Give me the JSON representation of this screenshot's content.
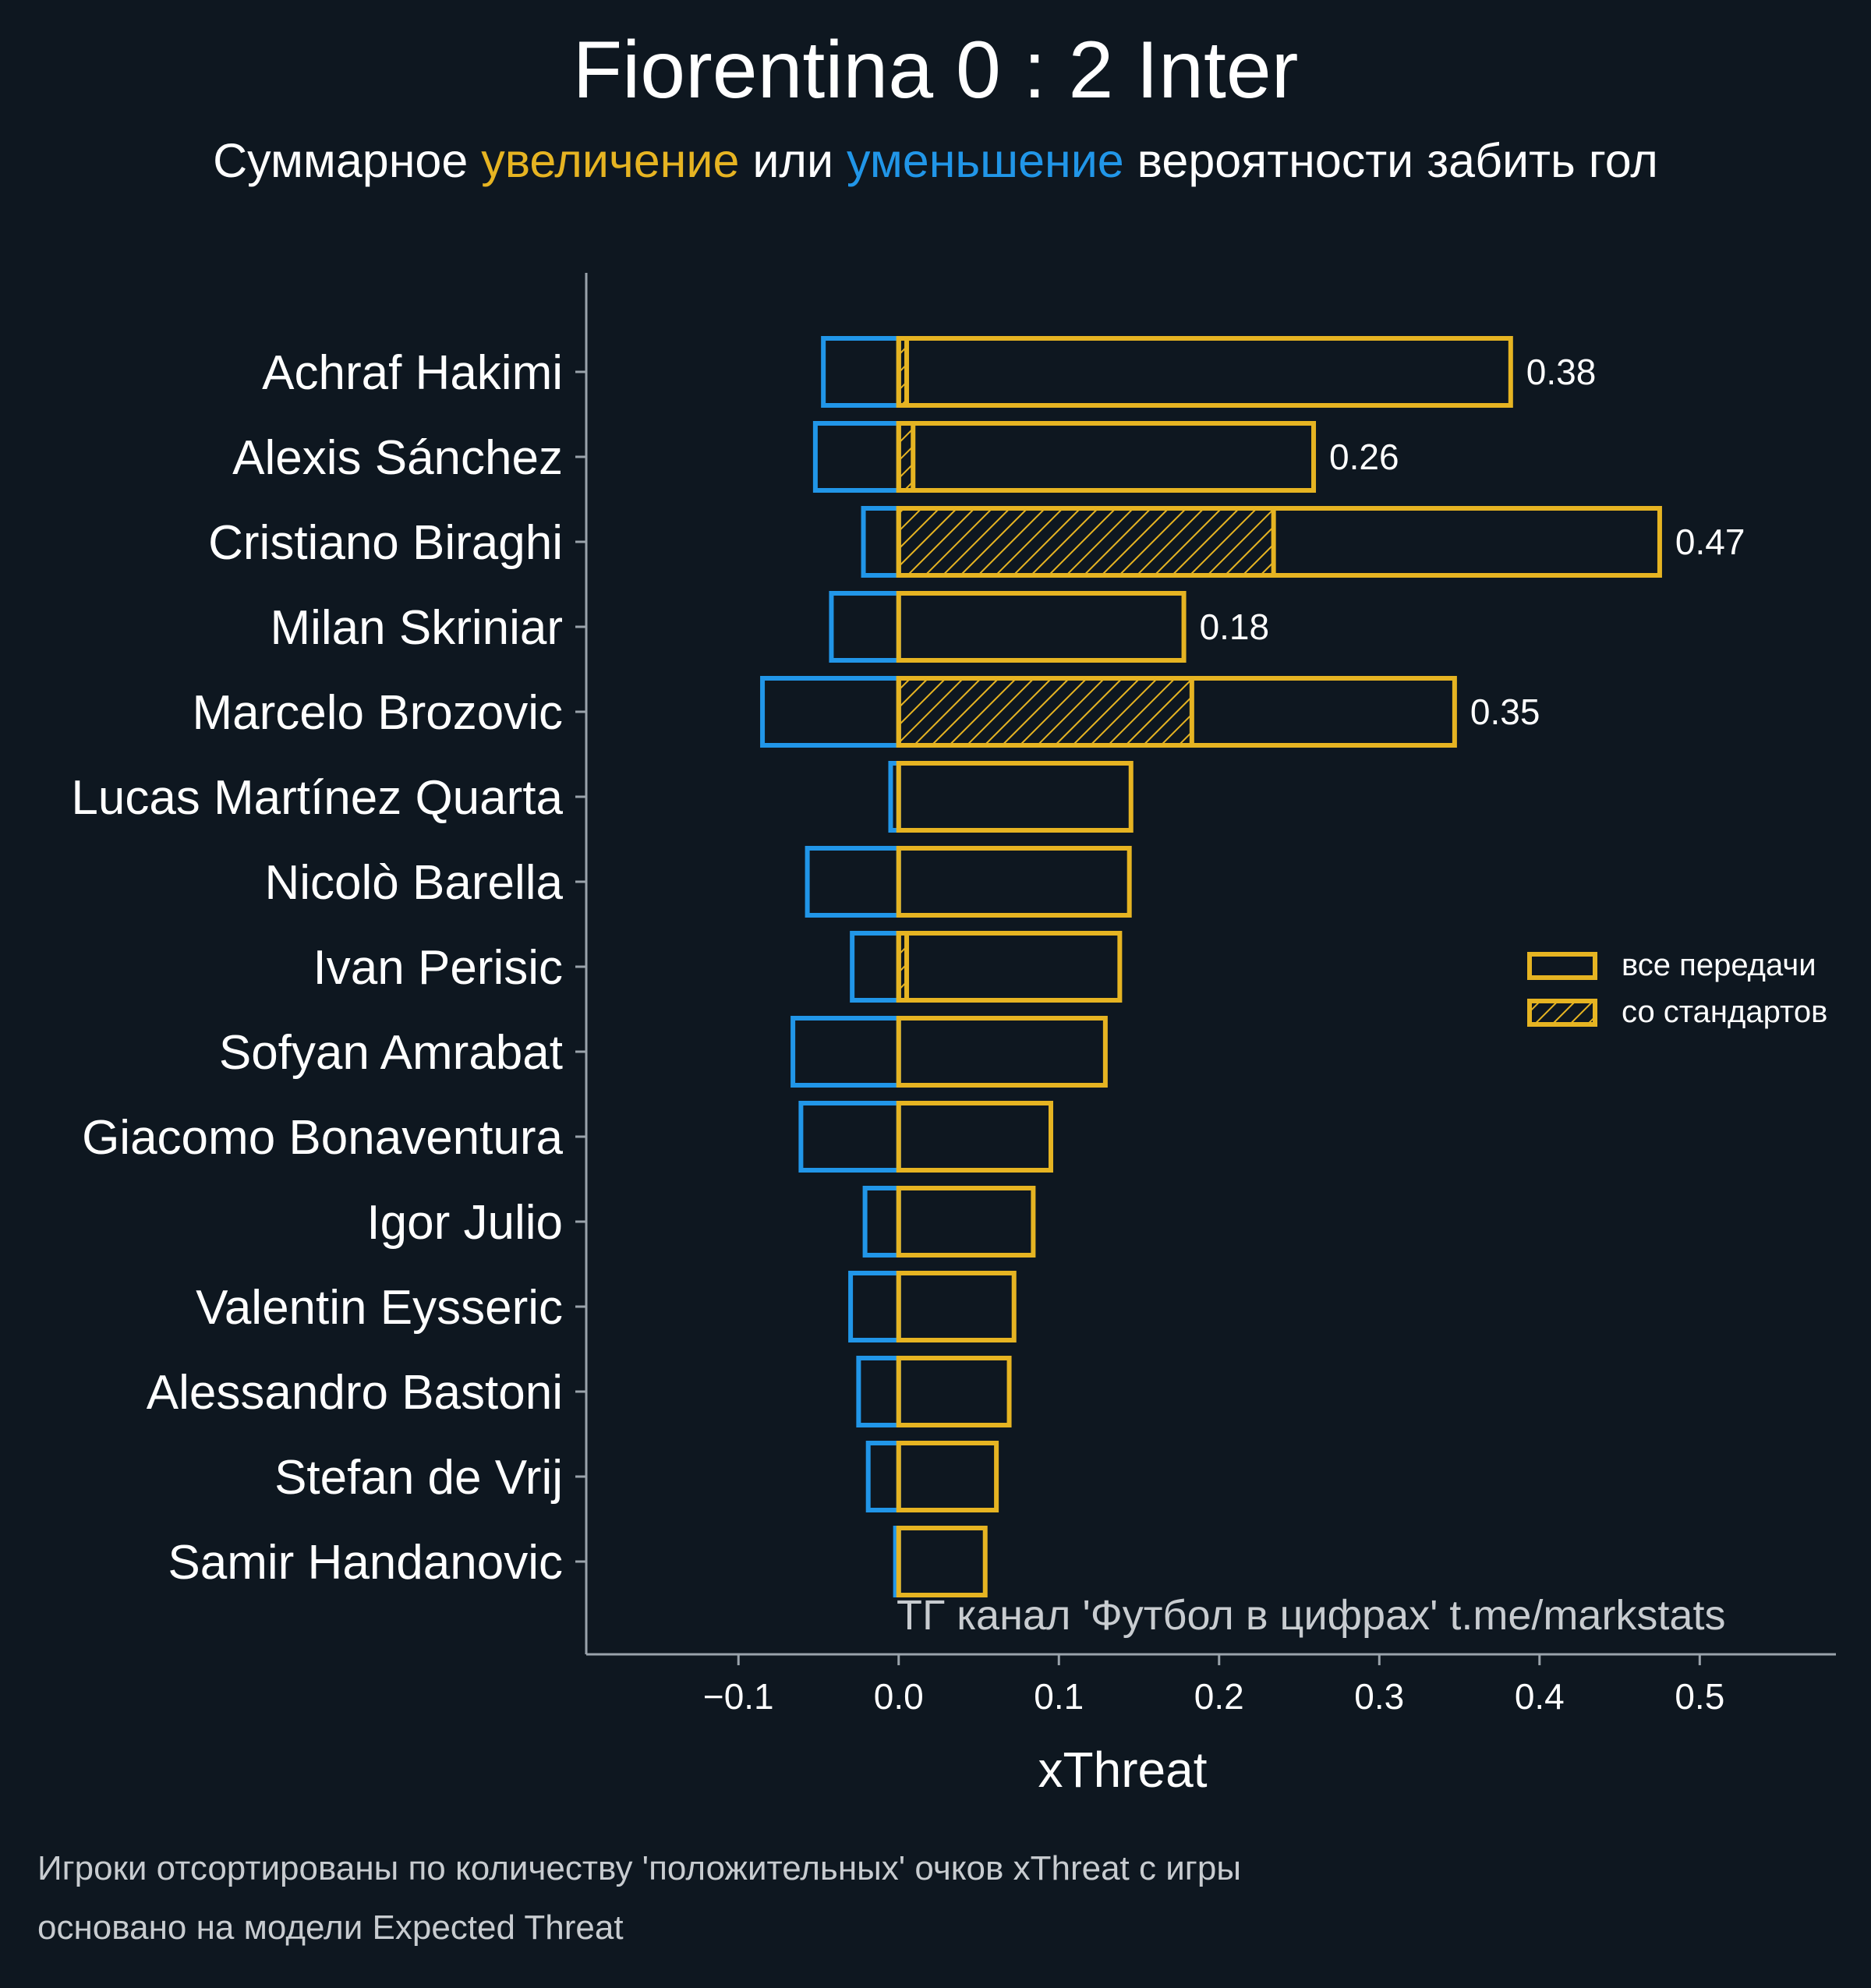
{
  "title": "Fiorentina 0 : 2 Inter",
  "subtitle": {
    "part1": "Суммарное ",
    "increase": "увеличение",
    "part2": " или ",
    "decrease": "уменьшение",
    "part3": " вероятности забить гол"
  },
  "watermark": "ТГ канал 'Футбол в цифрах'  t.me/markstats",
  "footnotes": [
    "Игроки отсортированы по количеству 'положительных' очков xThreat с игры",
    "основано на модели Expected Threat"
  ],
  "colors": {
    "background": "#0e1720",
    "increase": "#e6b422",
    "decrease": "#2196e8",
    "axis": "#9aa3ab"
  },
  "chart_data": {
    "type": "bar",
    "orientation": "horizontal",
    "xlabel": "xThreat",
    "xlim": [
      -0.195,
      0.585
    ],
    "xticks": [
      -0.1,
      0.0,
      0.1,
      0.2,
      0.3,
      0.4,
      0.5
    ],
    "xtick_labels": [
      "−0.1",
      "0.0",
      "0.1",
      "0.2",
      "0.3",
      "0.4",
      "0.5"
    ],
    "grid": false,
    "legend": {
      "placement": "right",
      "entries": [
        {
          "label": "все передачи",
          "hatch": false
        },
        {
          "label": "со стандартов",
          "hatch": true
        }
      ]
    },
    "categories": [
      "Achraf Hakimi",
      "Alexis Sánchez",
      "Cristiano Biraghi",
      "Milan Skriniar",
      "Marcelo Brozovic",
      "Lucas Martínez Quarta",
      "Nicolò Barella",
      "Ivan Perisic",
      "Sofyan Amrabat",
      "Giacomo Bonaventura",
      "Igor Julio",
      "Valentin Eysseric",
      "Alessandro Bastoni",
      "Stefan de Vrij",
      "Samir Handanovic"
    ],
    "series": [
      {
        "name": "все передачи",
        "role": "positive",
        "values": [
          0.382,
          0.259,
          0.475,
          0.178,
          0.347,
          0.145,
          0.144,
          0.138,
          0.129,
          0.095,
          0.084,
          0.072,
          0.069,
          0.061,
          0.054
        ]
      },
      {
        "name": "со стандартов",
        "role": "positive-set-pieces",
        "values": [
          0.005,
          0.009,
          0.234,
          0.0,
          0.183,
          0.0,
          0.0,
          0.005,
          0.0,
          0.0,
          0.0,
          0.0,
          0.0,
          0.0,
          0.0
        ]
      },
      {
        "role": "negative",
        "values": [
          -0.047,
          -0.052,
          -0.022,
          -0.042,
          -0.085,
          -0.005,
          -0.057,
          -0.029,
          -0.066,
          -0.061,
          -0.021,
          -0.03,
          -0.025,
          -0.019,
          -0.002
        ]
      }
    ],
    "data_labels": [
      "0.38",
      "0.26",
      "0.47",
      "0.18",
      "0.35",
      "",
      "",
      "",
      "",
      "",
      "",
      "",
      "",
      "",
      ""
    ]
  }
}
